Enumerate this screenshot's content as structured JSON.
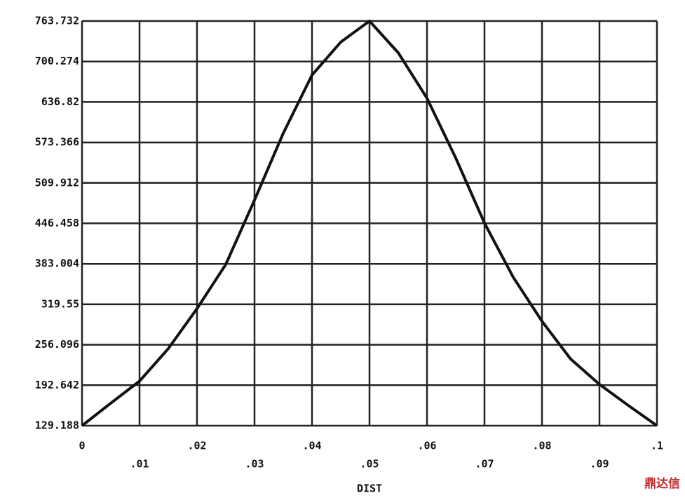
{
  "chart_data": {
    "type": "line",
    "x_label": "DIST",
    "x": [
      0,
      0.005,
      0.01,
      0.015,
      0.02,
      0.025,
      0.03,
      0.035,
      0.04,
      0.045,
      0.05,
      0.055,
      0.06,
      0.065,
      0.07,
      0.075,
      0.08,
      0.085,
      0.09,
      0.095,
      0.1
    ],
    "series": [
      {
        "color": "#111111",
        "values": [
          129.188,
          164.4,
          199,
          250,
          312.8,
          382,
          483,
          587.8,
          679,
          730.7,
          763.732,
          714,
          642.7,
          549,
          447,
          362,
          293,
          233.6,
          194,
          161,
          129.188
        ]
      }
    ],
    "xlim": [
      0,
      0.1
    ],
    "ylim": [
      129.188,
      763.732
    ],
    "xticks": [
      0,
      {
        "value": 0.01,
        "label": ".01"
      },
      {
        "value": 0.02,
        "label": ".02"
      },
      {
        "value": 0.03,
        "label": ".03"
      },
      {
        "value": 0.04,
        "label": ".04"
      },
      {
        "value": 0.05,
        "label": ".05"
      },
      {
        "value": 0.06,
        "label": ".06"
      },
      {
        "value": 0.07,
        "label": ".07"
      },
      {
        "value": 0.08,
        "label": ".08"
      },
      {
        "value": 0.09,
        "label": ".09"
      },
      {
        "value": 0.1,
        "label": ".1"
      }
    ],
    "yticks": [
      129.188,
      192.642,
      256.096,
      319.55,
      383.004,
      446.458,
      509.912,
      573.366,
      636.82,
      700.274,
      763.732
    ],
    "grid": true,
    "watermark": "鼎达信"
  }
}
